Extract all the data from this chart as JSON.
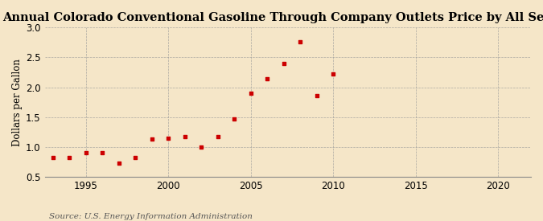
{
  "title": "Annual Colorado Conventional Gasoline Through Company Outlets Price by All Sellers",
  "ylabel": "Dollars per Gallon",
  "source": "Source: U.S. Energy Information Administration",
  "years": [
    1993,
    1994,
    1995,
    1996,
    1997,
    1998,
    1999,
    2000,
    2001,
    2002,
    2003,
    2004,
    2005,
    2006,
    2007,
    2008,
    2009,
    2010
  ],
  "values": [
    0.83,
    0.83,
    0.91,
    0.9,
    0.73,
    0.83,
    1.13,
    1.15,
    1.18,
    1.0,
    1.17,
    1.47,
    1.9,
    2.15,
    2.4,
    2.76,
    1.86,
    2.23
  ],
  "marker_color": "#cc0000",
  "background_color": "#f5e6c8",
  "grid_color": "#999999",
  "xlim": [
    1992.5,
    2022
  ],
  "ylim": [
    0.5,
    3.0
  ],
  "xticks": [
    1995,
    2000,
    2005,
    2010,
    2015,
    2020
  ],
  "yticks": [
    0.5,
    1.0,
    1.5,
    2.0,
    2.5,
    3.0
  ],
  "title_fontsize": 10.5,
  "label_fontsize": 8.5,
  "tick_fontsize": 8.5,
  "source_fontsize": 7.5
}
